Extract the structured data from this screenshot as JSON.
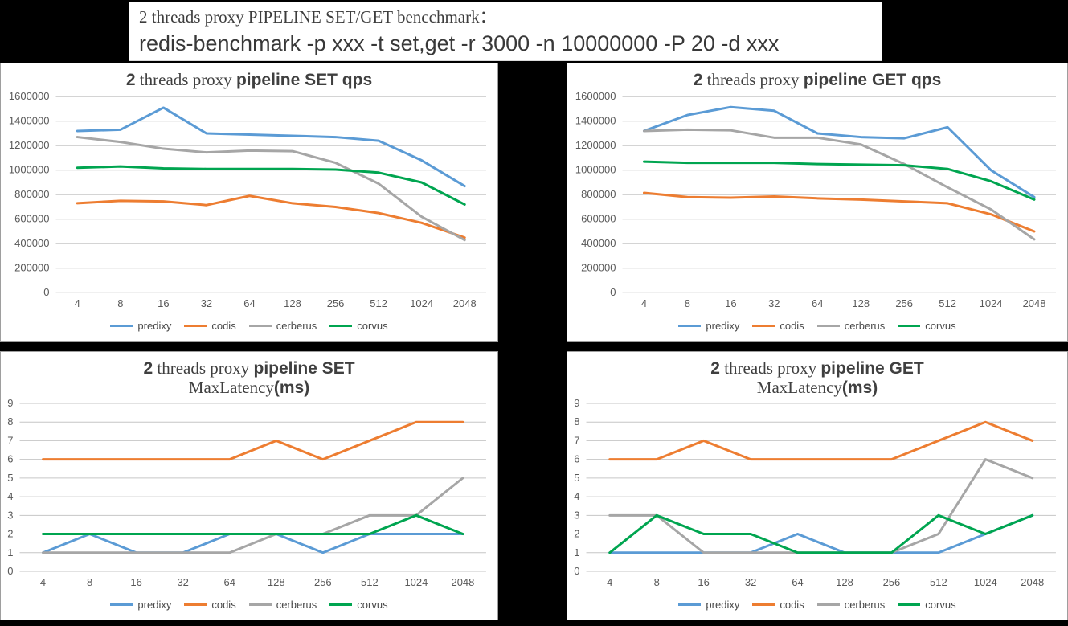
{
  "header": {
    "line1": "2 threads proxy PIPELINE SET/GET bencchmark：",
    "line2": "redis-benchmark -p xxx -t set,get -r 3000 -n 10000000 -P 20 -d xxx"
  },
  "colors": {
    "predixy": "#5B9BD5",
    "codis": "#ED7D31",
    "cerberus": "#A6A6A6",
    "corvus": "#00A550",
    "grid": "#C6C6C6",
    "axis_text": "#595959",
    "title_text": "#3F3F3F",
    "page_background": "#000000",
    "panel_background": "#FFFFFF"
  },
  "legend": [
    "predixy",
    "codis",
    "cerberus",
    "corvus"
  ],
  "chart_data": [
    {
      "id": "set_qps",
      "type": "line",
      "title_lines": [
        [
          [
            "2",
            "b"
          ],
          [
            " threads proxy ",
            "r"
          ],
          [
            "pipeline SET qps",
            "b"
          ]
        ]
      ],
      "categories": [
        "4",
        "8",
        "16",
        "32",
        "64",
        "128",
        "256",
        "512",
        "1024",
        "2048"
      ],
      "xlabel": "",
      "ylabel": "",
      "ylim": [
        0,
        1600000
      ],
      "ytick": 200000,
      "grid": true,
      "legend_position": "bottom",
      "series": [
        {
          "name": "predixy",
          "values": [
            1320000,
            1330000,
            1510000,
            1300000,
            1290000,
            1280000,
            1270000,
            1240000,
            1080000,
            870000
          ]
        },
        {
          "name": "codis",
          "values": [
            730000,
            750000,
            745000,
            715000,
            790000,
            730000,
            700000,
            650000,
            570000,
            450000
          ]
        },
        {
          "name": "cerberus",
          "values": [
            1270000,
            1230000,
            1175000,
            1145000,
            1160000,
            1155000,
            1060000,
            890000,
            620000,
            430000
          ]
        },
        {
          "name": "corvus",
          "values": [
            1020000,
            1030000,
            1015000,
            1010000,
            1010000,
            1010000,
            1005000,
            980000,
            900000,
            720000
          ]
        }
      ]
    },
    {
      "id": "get_qps",
      "type": "line",
      "title_lines": [
        [
          [
            "2",
            "b"
          ],
          [
            " threads proxy ",
            "r"
          ],
          [
            "pipeline GET qps",
            "b"
          ]
        ]
      ],
      "categories": [
        "4",
        "8",
        "16",
        "32",
        "64",
        "128",
        "256",
        "512",
        "1024",
        "2048"
      ],
      "xlabel": "",
      "ylabel": "",
      "ylim": [
        0,
        1600000
      ],
      "ytick": 200000,
      "grid": true,
      "legend_position": "bottom",
      "series": [
        {
          "name": "predixy",
          "values": [
            1320000,
            1450000,
            1515000,
            1485000,
            1300000,
            1270000,
            1260000,
            1350000,
            1000000,
            780000
          ]
        },
        {
          "name": "codis",
          "values": [
            815000,
            780000,
            775000,
            785000,
            770000,
            760000,
            745000,
            730000,
            640000,
            500000
          ]
        },
        {
          "name": "cerberus",
          "values": [
            1320000,
            1330000,
            1325000,
            1265000,
            1265000,
            1210000,
            1050000,
            860000,
            680000,
            435000
          ]
        },
        {
          "name": "corvus",
          "values": [
            1070000,
            1060000,
            1060000,
            1060000,
            1050000,
            1045000,
            1040000,
            1010000,
            910000,
            760000
          ]
        }
      ]
    },
    {
      "id": "set_maxlatency",
      "type": "line",
      "title_lines": [
        [
          [
            "2",
            "b"
          ],
          [
            " threads proxy ",
            "r"
          ],
          [
            "pipeline SET",
            "b"
          ]
        ],
        [
          [
            "MaxLatency",
            "r"
          ],
          [
            "(ms)",
            "b"
          ]
        ]
      ],
      "categories": [
        "4",
        "8",
        "16",
        "32",
        "64",
        "128",
        "256",
        "512",
        "1024",
        "2048"
      ],
      "xlabel": "",
      "ylabel": "",
      "ylim": [
        0,
        9
      ],
      "ytick": 1,
      "grid": true,
      "legend_position": "bottom",
      "series": [
        {
          "name": "predixy",
          "values": [
            1,
            2,
            1,
            1,
            2,
            2,
            1,
            2,
            2,
            2
          ]
        },
        {
          "name": "codis",
          "values": [
            6,
            6,
            6,
            6,
            6,
            7,
            6,
            7,
            8,
            8
          ]
        },
        {
          "name": "cerberus",
          "values": [
            1,
            1,
            1,
            1,
            1,
            2,
            2,
            3,
            3,
            5
          ]
        },
        {
          "name": "corvus",
          "values": [
            2,
            2,
            2,
            2,
            2,
            2,
            2,
            2,
            3,
            2
          ]
        }
      ]
    },
    {
      "id": "get_maxlatency",
      "type": "line",
      "title_lines": [
        [
          [
            "2",
            "b"
          ],
          [
            " threads proxy ",
            "r"
          ],
          [
            "pipeline GET",
            "b"
          ]
        ],
        [
          [
            "MaxLatency",
            "r"
          ],
          [
            "(ms)",
            "b"
          ]
        ]
      ],
      "categories": [
        "4",
        "8",
        "16",
        "32",
        "64",
        "128",
        "256",
        "512",
        "1024",
        "2048"
      ],
      "xlabel": "",
      "ylabel": "",
      "ylim": [
        0,
        9
      ],
      "ytick": 1,
      "grid": true,
      "legend_position": "bottom",
      "series": [
        {
          "name": "predixy",
          "values": [
            1,
            1,
            1,
            1,
            2,
            1,
            1,
            1,
            2,
            3
          ]
        },
        {
          "name": "codis",
          "values": [
            6,
            6,
            7,
            6,
            6,
            6,
            6,
            7,
            8,
            7
          ]
        },
        {
          "name": "cerberus",
          "values": [
            3,
            3,
            1,
            1,
            1,
            1,
            1,
            2,
            6,
            5
          ]
        },
        {
          "name": "corvus",
          "values": [
            1,
            3,
            2,
            2,
            1,
            1,
            1,
            3,
            2,
            3
          ]
        }
      ]
    }
  ]
}
